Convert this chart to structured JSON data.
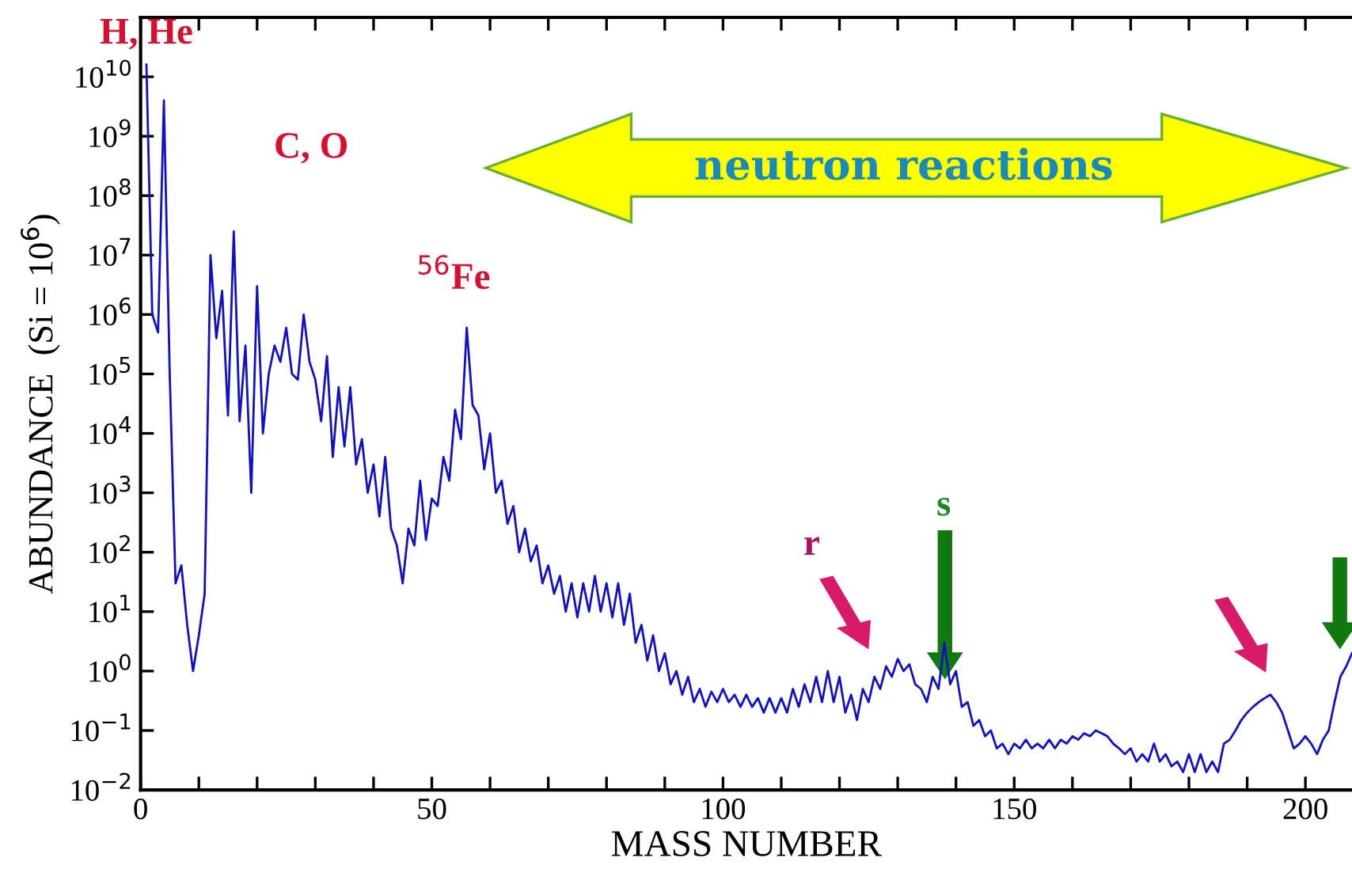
{
  "chart_data": {
    "type": "line",
    "xlabel": "MASS NUMBER",
    "ylabel": "ABUNDANCE  (Si = 10$^{6}$)",
    "log": "y",
    "grid": false,
    "legend": false,
    "marker": "none",
    "line_style": "solid",
    "xlim": [
      0,
      208
    ],
    "ylim": [
      0.01,
      100000000000.0
    ],
    "xticks": [
      0,
      {
        "value": 10,
        "label": null
      },
      {
        "value": 20,
        "label": null
      },
      {
        "value": 30,
        "label": null
      },
      {
        "value": 40,
        "label": null
      },
      50,
      {
        "value": 60,
        "label": null
      },
      {
        "value": 70,
        "label": null
      },
      {
        "value": 80,
        "label": null
      },
      {
        "value": 90,
        "label": null
      },
      100,
      {
        "value": 110,
        "label": null
      },
      {
        "value": 120,
        "label": null
      },
      {
        "value": 130,
        "label": null
      },
      {
        "value": 140,
        "label": null
      },
      150,
      {
        "value": 160,
        "label": null
      },
      {
        "value": 170,
        "label": null
      },
      {
        "value": 180,
        "label": null
      },
      {
        "value": 190,
        "label": null
      },
      200
    ],
    "yticks": [
      {
        "value": 0.01,
        "label": "10$^{−2}$"
      },
      {
        "value": 0.1,
        "label": "10$^{−1}$"
      },
      {
        "value": 1,
        "label": "10$^{0}$"
      },
      {
        "value": 10,
        "label": "10$^{1}$"
      },
      {
        "value": 100,
        "label": "10$^{2}$"
      },
      {
        "value": 1000,
        "label": "10$^{3}$"
      },
      {
        "value": 10000,
        "label": "10$^{4}$"
      },
      {
        "value": 100000,
        "label": "10$^{5}$"
      },
      {
        "value": 1000000,
        "label": "10$^{6}$"
      },
      {
        "value": 10000000,
        "label": "10$^{7}$"
      },
      {
        "value": 100000000,
        "label": "10$^{8}$"
      },
      {
        "value": 1000000000,
        "label": "10$^{9}$"
      },
      {
        "value": 10000000000,
        "label": "10$^{10}$"
      }
    ],
    "annotations": [
      {
        "text": "H, He",
        "x": 1,
        "y": 16000000000.0
      },
      "C, O",
      {
        "text": "$^{56}$Fe",
        "x": 56,
        "y": 600000.0
      },
      "r",
      "s",
      "neutron reactions"
    ],
    "series": [
      {
        "color": "#1010c8",
        "x": [
          1,
          2,
          3,
          4,
          5,
          6,
          7,
          8,
          9,
          10,
          11,
          12,
          13,
          14,
          15,
          16,
          17,
          18,
          19,
          20,
          21,
          22,
          23,
          24,
          25,
          26,
          27,
          28,
          29,
          30,
          31,
          32,
          33,
          34,
          35,
          36,
          37,
          38,
          39,
          40,
          41,
          42,
          43,
          44,
          45,
          46,
          47,
          48,
          49,
          50,
          51,
          52,
          53,
          54,
          55,
          56,
          57,
          58,
          59,
          60,
          61,
          62,
          63,
          64,
          65,
          66,
          67,
          68,
          69,
          70,
          71,
          72,
          73,
          74,
          75,
          76,
          77,
          78,
          79,
          80,
          81,
          82,
          83,
          84,
          85,
          86,
          87,
          88,
          89,
          90,
          91,
          92,
          93,
          94,
          95,
          96,
          97,
          98,
          99,
          100,
          101,
          102,
          103,
          104,
          105,
          106,
          107,
          108,
          109,
          110,
          111,
          112,
          113,
          114,
          115,
          116,
          117,
          118,
          119,
          120,
          121,
          122,
          123,
          124,
          125,
          126,
          127,
          128,
          129,
          130,
          131,
          132,
          133,
          134,
          135,
          136,
          137,
          138,
          139,
          140,
          141,
          142,
          143,
          144,
          145,
          146,
          147,
          148,
          149,
          150,
          151,
          152,
          153,
          154,
          155,
          156,
          157,
          158,
          159,
          160,
          161,
          162,
          163,
          164,
          165,
          166,
          167,
          168,
          169,
          170,
          171,
          172,
          173,
          174,
          175,
          176,
          177,
          178,
          179,
          180,
          181,
          182,
          183,
          184,
          185,
          186,
          187,
          188,
          189,
          190,
          191,
          192,
          193,
          194,
          195,
          196,
          197,
          198,
          199,
          200,
          201,
          202,
          203,
          204,
          205,
          206,
          207,
          208
        ],
        "values": [
          16000000000.0,
          1000000.0,
          500000.0,
          4000000000.0,
          100000.0,
          30,
          60,
          6,
          1,
          4,
          20,
          10000000.0,
          400000.0,
          2500000.0,
          20000.0,
          25000000.0,
          16000.0,
          300000.0,
          1000.0,
          3000000.0,
          10000.0,
          100000.0,
          300000.0,
          160000.0,
          600000.0,
          100000.0,
          80000.0,
          1000000.0,
          160000.0,
          80000.0,
          16000.0,
          200000.0,
          4000.0,
          60000.0,
          6000.0,
          60000.0,
          3000.0,
          8000.0,
          1000.0,
          3000.0,
          400,
          4000.0,
          250,
          130,
          30,
          250,
          130,
          1600.0,
          160,
          800,
          600,
          4000.0,
          1600.0,
          25000.0,
          8000.0,
          600000.0,
          30000.0,
          20000.0,
          2500.0,
          10000.0,
          1000.0,
          1600.0,
          300,
          600,
          100,
          250,
          70,
          130,
          30,
          60,
          20,
          40,
          10,
          30,
          8,
          30,
          10,
          40,
          10,
          30,
          8,
          30,
          6,
          20,
          3,
          6,
          1.5,
          4,
          1,
          2,
          0.6,
          1,
          0.4,
          0.8,
          0.3,
          0.5,
          0.25,
          0.45,
          0.3,
          0.5,
          0.3,
          0.4,
          0.25,
          0.4,
          0.25,
          0.35,
          0.2,
          0.35,
          0.2,
          0.35,
          0.2,
          0.5,
          0.25,
          0.6,
          0.3,
          0.8,
          0.3,
          1,
          0.3,
          0.8,
          0.2,
          0.4,
          0.15,
          0.5,
          0.3,
          0.8,
          0.5,
          1.2,
          0.8,
          1.6,
          1,
          1.3,
          0.6,
          0.5,
          0.3,
          0.8,
          0.5,
          3,
          0.6,
          1,
          0.25,
          0.3,
          0.12,
          0.15,
          0.08,
          0.1,
          0.05,
          0.06,
          0.04,
          0.06,
          0.05,
          0.07,
          0.05,
          0.06,
          0.05,
          0.07,
          0.05,
          0.07,
          0.06,
          0.08,
          0.07,
          0.09,
          0.08,
          0.1,
          0.09,
          0.08,
          0.06,
          0.05,
          0.04,
          0.05,
          0.03,
          0.04,
          0.03,
          0.06,
          0.03,
          0.04,
          0.025,
          0.03,
          0.02,
          0.04,
          0.02,
          0.04,
          0.02,
          0.03,
          0.02,
          0.06,
          0.07,
          0.1,
          0.15,
          0.2,
          0.25,
          0.3,
          0.35,
          0.4,
          0.3,
          0.2,
          0.1,
          0.05,
          0.06,
          0.08,
          0.06,
          0.04,
          0.07,
          0.1,
          0.3,
          0.8,
          1.2,
          2
        ]
      }
    ]
  }
}
